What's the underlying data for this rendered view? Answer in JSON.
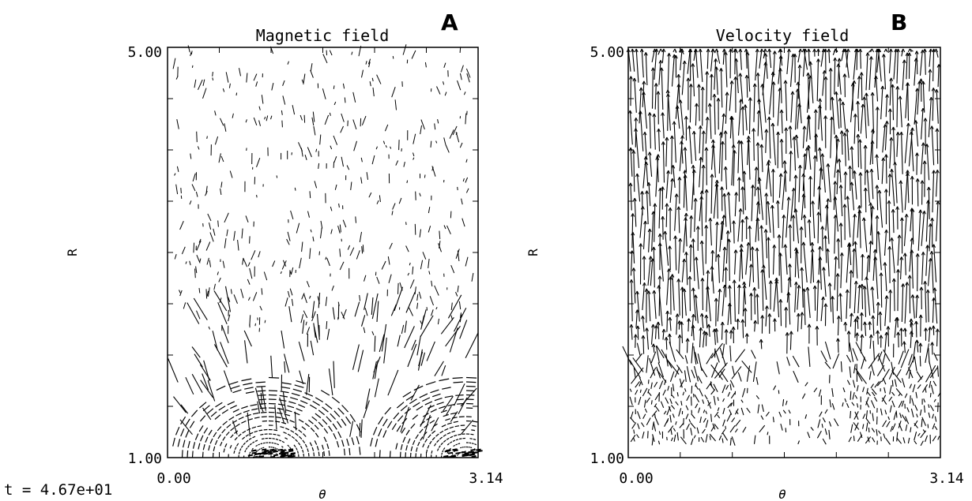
{
  "time_stamp": "t = 4.67e+01",
  "chart_data": [
    {
      "type": "vector-field",
      "panel_letter": "A",
      "title": "Magnetic field",
      "xlabel": "θ",
      "ylabel": "R",
      "xlim": [
        0.0,
        3.14
      ],
      "ylim": [
        1.0,
        5.0
      ],
      "x_tick_labels": [
        "0.00",
        "3.14"
      ],
      "y_tick_labels": [
        "1.00",
        "5.00"
      ],
      "pattern": "closed loops (arcades) anchored at the base near θ≈1.1 and θ≈3.1, dashed field segments in the upper region"
    },
    {
      "type": "vector-field",
      "panel_letter": "B",
      "title": "Velocity field",
      "xlabel": "θ",
      "ylabel": "R",
      "xlim": [
        0.0,
        3.14
      ],
      "ylim": [
        1.0,
        5.0
      ],
      "x_tick_labels": [
        "0.00",
        "3.14"
      ],
      "y_tick_labels": [
        "1.00",
        "5.00"
      ],
      "pattern": "predominantly radial outflow arrows, denser toward higher R; short weak vectors near the base"
    }
  ]
}
